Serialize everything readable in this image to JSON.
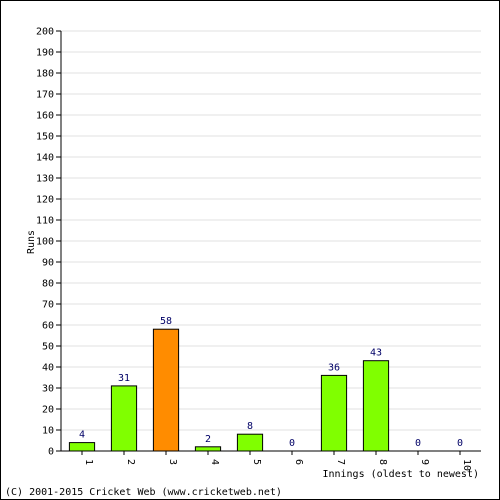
{
  "chart_data": {
    "type": "bar",
    "categories": [
      "1",
      "2",
      "3",
      "4",
      "5",
      "6",
      "7",
      "8",
      "9",
      "10"
    ],
    "values": [
      4,
      31,
      58,
      2,
      8,
      0,
      36,
      43,
      0,
      0
    ],
    "data_labels": [
      "4",
      "31",
      "58",
      "2",
      "8",
      "0",
      "36",
      "43",
      "0",
      "0"
    ],
    "highlight_index": 2,
    "xlabel": "Innings (oldest to newest)",
    "ylabel": "Runs",
    "ylim": [
      0,
      200
    ],
    "yticks": [
      "0",
      "10",
      "20",
      "30",
      "40",
      "50",
      "60",
      "70",
      "80",
      "90",
      "100",
      "110",
      "120",
      "130",
      "140",
      "150",
      "160",
      "170",
      "180",
      "190",
      "200"
    ],
    "grid": true,
    "bar_color": "#80ff00",
    "highlight_color": "#ff8c00"
  },
  "footer": {
    "copyright": "(C) 2001-2015 Cricket Web (www.cricketweb.net)"
  }
}
